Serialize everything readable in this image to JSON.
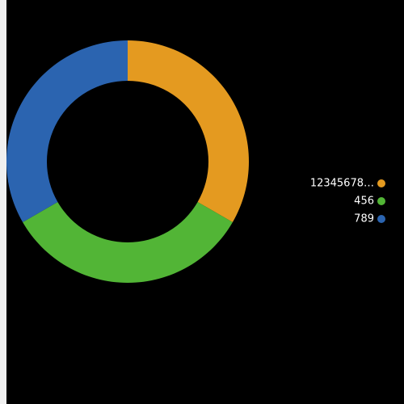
{
  "chart_data": {
    "type": "donut",
    "categories": [
      "12345678…",
      "456",
      "789"
    ],
    "values": [
      33.3,
      33.3,
      33.3
    ],
    "colors": [
      "#e49a20",
      "#52b536",
      "#2b64b0"
    ],
    "legend": "right"
  }
}
